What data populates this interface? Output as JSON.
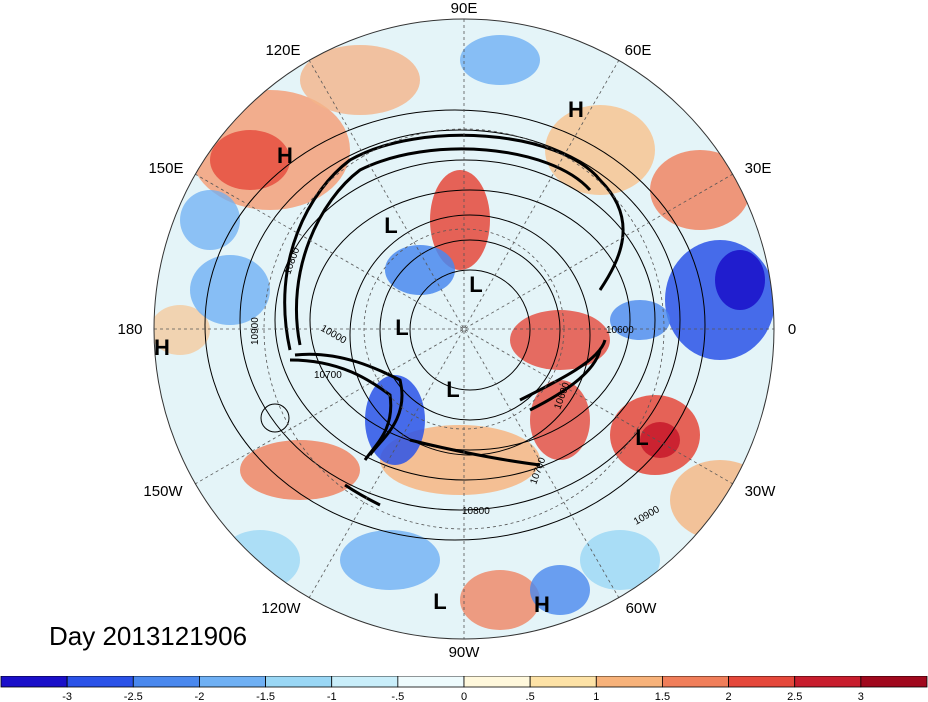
{
  "title": "Day 2013121906",
  "longitude_labels": [
    "90E",
    "60E",
    "30E",
    "0",
    "30W",
    "60W",
    "90W",
    "120W",
    "150W",
    "180",
    "150E",
    "120E"
  ],
  "pressure_centers": [
    {
      "label": "H",
      "lon_lat": "near 60E"
    },
    {
      "label": "H",
      "lon_lat": "near 150E"
    },
    {
      "label": "H",
      "lon_lat": "near 180"
    },
    {
      "label": "L",
      "lon_lat": "near 150E"
    },
    {
      "label": "L",
      "lon_lat": "near pole"
    },
    {
      "label": "L",
      "lon_lat": "near 180"
    },
    {
      "label": "L",
      "lon_lat": "near 90W high lat"
    },
    {
      "label": "L",
      "lon_lat": "near 30W"
    },
    {
      "label": "L",
      "lon_lat": "near 90W low lat"
    },
    {
      "label": "H",
      "lon_lat": "near 60W"
    }
  ],
  "contour_labels": [
    "10800",
    "10900",
    "10000",
    "10700",
    "10600",
    "10700",
    "10900",
    "10800",
    "10600"
  ],
  "colorbar": {
    "colors": [
      "#1a0fc9",
      "#2a52e8",
      "#4a88ee",
      "#6fb0f4",
      "#9ad7f5",
      "#c9eefa",
      "#eefbfd",
      "#fff8dc",
      "#fde2a6",
      "#f7b27a",
      "#f07e5a",
      "#e5483b",
      "#c81d2d",
      "#a0081d"
    ],
    "tick_labels": [
      "-3",
      "-2.5",
      "-2",
      "-1.5",
      "-1",
      "-.5",
      "0",
      ".5",
      "1",
      "1.5",
      "2",
      "2.5",
      "3"
    ]
  }
}
